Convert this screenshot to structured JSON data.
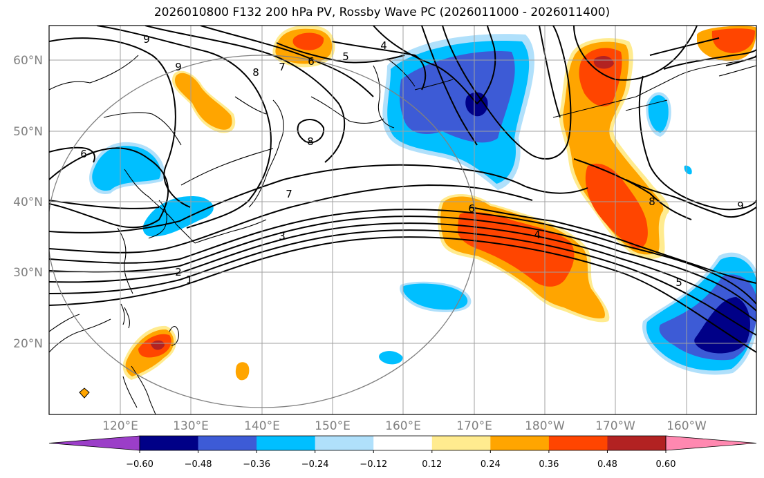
{
  "title": "2026010800 F132 200 hPa PV, Rossby Wave PC (2026011000 - 2026011400)",
  "map": {
    "lat_labels": [
      "60°N",
      "50°N",
      "40°N",
      "30°N",
      "20°N"
    ],
    "lon_labels": [
      "120°E",
      "130°E",
      "140°E",
      "150°E",
      "160°E",
      "170°E",
      "180°W",
      "170°W",
      "160°W"
    ],
    "contour_labels": [
      "9",
      "8",
      "7",
      "6",
      "5",
      "4",
      "9",
      "8",
      "7",
      "6",
      "3",
      "2",
      "1",
      "6",
      "4",
      "5",
      "8",
      "9"
    ]
  },
  "colorbar": {
    "ticks": [
      "−0.60",
      "−0.48",
      "−0.36",
      "−0.24",
      "−0.12",
      "0.12",
      "0.24",
      "0.36",
      "0.48",
      "0.60"
    ],
    "colors": [
      "#9b3ec8",
      "#000087",
      "#3d5bd6",
      "#00bfff",
      "#b0e0fb",
      "#ffffff",
      "#ffeb8f",
      "#ffa500",
      "#ff4500",
      "#b22222",
      "#ff88b0"
    ]
  }
}
